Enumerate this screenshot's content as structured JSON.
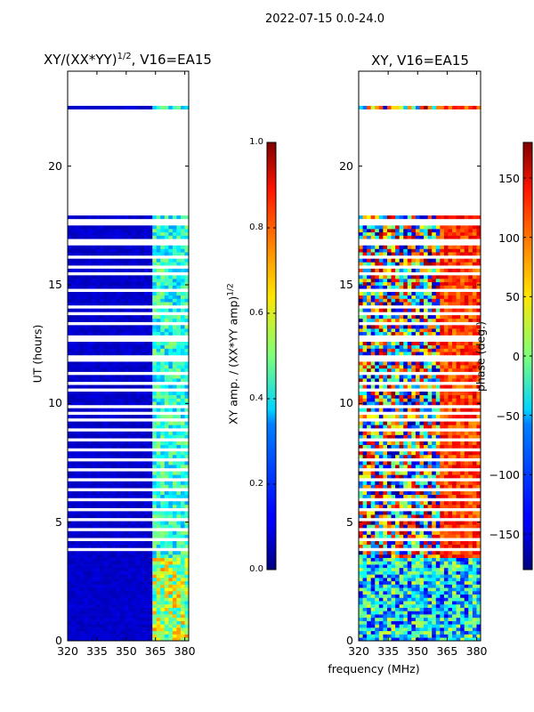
{
  "chart_data": [
    {
      "type": "heatmap",
      "suptitle": "2022-07-15 0.0-24.0",
      "title": "XY/(XX*YY)^1/2, V16=EA15",
      "title_main": "XY/(XX*YY)",
      "title_sup": "1/2",
      "title_rest": ", V16=EA15",
      "xlabel": "frequency (MHz)",
      "ylabel": "UT (hours)",
      "x_range": [
        320,
        382
      ],
      "y_range": [
        0,
        24
      ],
      "xticks": [
        "320",
        "335",
        "350",
        "365",
        "380"
      ],
      "xtick_values": [
        320,
        335,
        350,
        365,
        380
      ],
      "yticks": [
        "0",
        "5",
        "10",
        "15",
        "20"
      ],
      "ytick_values": [
        0,
        5,
        10,
        15,
        20
      ],
      "data_rows_hours": [
        [
          0,
          3.4
        ],
        [
          3.4,
          9.4
        ],
        [
          9.6,
          17.8
        ],
        [
          22.4,
          22.5
        ]
      ],
      "gap_rows_hours": [
        [
          9.1,
          9.3
        ],
        [
          8.7,
          8.9
        ],
        [
          22.5,
          24
        ],
        [
          17.8,
          22.4
        ]
      ],
      "colorbar": {
        "label": "XY amp. / (XX*YY amp)^1/2",
        "label_main": "XY amp. / (XX*YY amp)",
        "label_sup": "1/2",
        "range": [
          0.0,
          1.0
        ],
        "ticks": [
          "0.0",
          "0.2",
          "0.4",
          "0.6",
          "0.8",
          "1.0"
        ],
        "tick_values": [
          0.0,
          0.2,
          0.4,
          0.6,
          0.8,
          1.0
        ]
      }
    },
    {
      "type": "heatmap",
      "title": "XY, V16=EA15",
      "xlabel": "frequency (MHz)",
      "ylabel": "",
      "x_range": [
        320,
        382
      ],
      "y_range": [
        0,
        24
      ],
      "xticks": [
        "320",
        "335",
        "350",
        "365",
        "380"
      ],
      "xtick_values": [
        320,
        335,
        350,
        365,
        380
      ],
      "yticks": [
        "0",
        "5",
        "10",
        "15",
        "20"
      ],
      "ytick_values": [
        0,
        5,
        10,
        15,
        20
      ],
      "colorbar": {
        "label": "phase (deg.)",
        "range": [
          -180,
          180
        ],
        "ticks": [
          "−150",
          "−100",
          "−50",
          "0",
          "50",
          "100",
          "150"
        ],
        "tick_values": [
          -150,
          -100,
          -50,
          0,
          50,
          100,
          150
        ]
      }
    }
  ],
  "shared_xlabel": "frequency (MHz)"
}
